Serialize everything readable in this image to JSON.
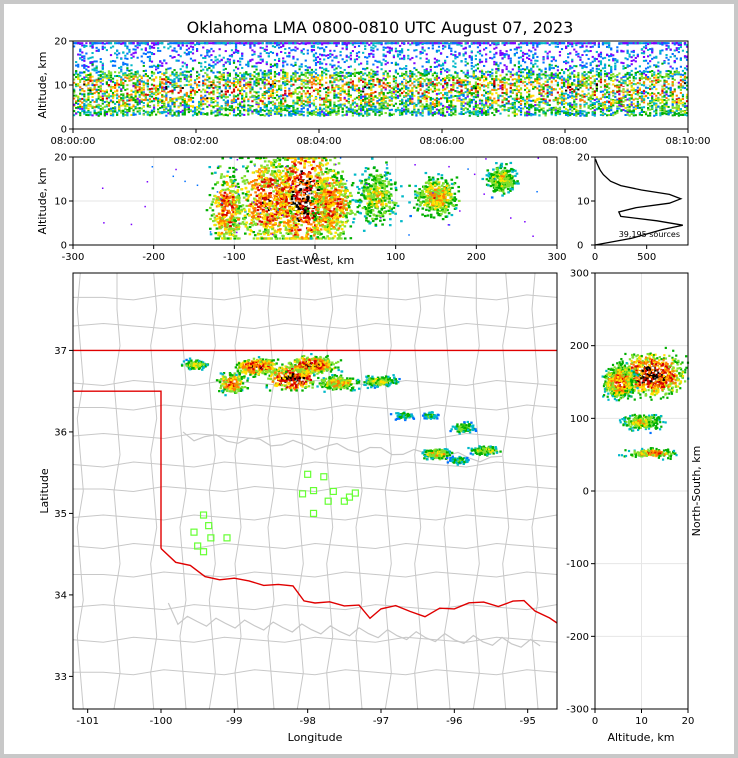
{
  "title": "Oklahoma LMA 0800-0810 UTC August 07, 2023",
  "colors": {
    "state_border": "#e00000",
    "county": "#c8c8c8",
    "station": "#66ff33",
    "frame": "#000000"
  },
  "chart_data": [
    {
      "type": "heatmap",
      "panel": "altitude-time",
      "xlim": [
        "08:00:00",
        "08:10:00"
      ],
      "ylim": [
        0,
        20
      ],
      "xticks": [
        "08:00:00",
        "08:02:00",
        "08:04:00",
        "08:06:00",
        "08:08:00",
        "08:10:00"
      ],
      "yticks": [
        0,
        10,
        20
      ],
      "ylabel": "Altitude, km"
    },
    {
      "type": "heatmap",
      "panel": "east-west-altitude",
      "xlim": [
        -300,
        300
      ],
      "ylim": [
        0,
        20
      ],
      "xticks": [
        -300,
        -200,
        -100,
        0,
        100,
        200,
        300
      ],
      "yticks": [
        0,
        10,
        20
      ],
      "xlabel": "East-West, km",
      "ylabel": "Altitude, km",
      "clusters": [
        {
          "x": -110,
          "y": 8,
          "w": 20,
          "h": 8,
          "intensity": 0.8
        },
        {
          "x": -60,
          "y": 10,
          "w": 35,
          "h": 10,
          "intensity": 0.85
        },
        {
          "x": -15,
          "y": 11,
          "w": 35,
          "h": 11,
          "intensity": 1.0
        },
        {
          "x": 20,
          "y": 9,
          "w": 25,
          "h": 8,
          "intensity": 0.8
        },
        {
          "x": 75,
          "y": 11,
          "w": 25,
          "h": 6,
          "intensity": 0.6
        },
        {
          "x": 150,
          "y": 11,
          "w": 25,
          "h": 4,
          "intensity": 0.7
        },
        {
          "x": 230,
          "y": 15,
          "w": 18,
          "h": 3,
          "intensity": 0.6
        }
      ]
    },
    {
      "type": "line",
      "panel": "altitude-histogram",
      "xlim": [
        0,
        900
      ],
      "ylim": [
        0,
        20
      ],
      "xticks": [
        0,
        500
      ],
      "yticks": [
        0,
        10,
        20
      ],
      "annotation": "39,195 sources",
      "points": [
        [
          0,
          0
        ],
        [
          350,
          1.5
        ],
        [
          500,
          2.5
        ],
        [
          650,
          3.5
        ],
        [
          850,
          4.5
        ],
        [
          600,
          5.5
        ],
        [
          250,
          6.5
        ],
        [
          230,
          7.5
        ],
        [
          400,
          8.5
        ],
        [
          720,
          9.5
        ],
        [
          830,
          10.5
        ],
        [
          720,
          11.5
        ],
        [
          450,
          12.5
        ],
        [
          250,
          13.5
        ],
        [
          150,
          14.5
        ],
        [
          80,
          16
        ],
        [
          50,
          17
        ],
        [
          20,
          18.5
        ],
        [
          5,
          19.5
        ]
      ]
    },
    {
      "type": "scatter",
      "panel": "plan-view-map",
      "xlim": [
        -101.2,
        -94.6
      ],
      "ylim": [
        32.6,
        37.95
      ],
      "xticks": [
        -101,
        -100,
        -99,
        -98,
        -97,
        -96,
        -95
      ],
      "yticks": [
        33,
        34,
        35,
        36,
        37
      ],
      "xlabel": "Longitude",
      "ylabel": "Latitude",
      "stations": [
        [
          -99.42,
          34.98
        ],
        [
          -99.35,
          34.85
        ],
        [
          -99.32,
          34.7
        ],
        [
          -99.55,
          34.77
        ],
        [
          -99.5,
          34.6
        ],
        [
          -99.42,
          34.53
        ],
        [
          -99.1,
          34.7
        ],
        [
          -98.0,
          35.48
        ],
        [
          -97.92,
          35.28
        ],
        [
          -97.78,
          35.45
        ],
        [
          -98.07,
          35.24
        ],
        [
          -97.72,
          35.15
        ],
        [
          -97.65,
          35.27
        ],
        [
          -97.5,
          35.15
        ],
        [
          -97.43,
          35.2
        ],
        [
          -97.35,
          35.25
        ],
        [
          -97.92,
          35.0
        ]
      ],
      "clusters": [
        {
          "lon": -99.55,
          "lat": 36.82,
          "w": 0.15,
          "h": 0.06,
          "intensity": 0.6
        },
        {
          "lon": -99.05,
          "lat": 36.6,
          "w": 0.18,
          "h": 0.12,
          "intensity": 0.8
        },
        {
          "lon": -98.7,
          "lat": 36.8,
          "w": 0.28,
          "h": 0.1,
          "intensity": 0.9
        },
        {
          "lon": -98.22,
          "lat": 36.65,
          "w": 0.3,
          "h": 0.15,
          "intensity": 1.0
        },
        {
          "lon": -97.95,
          "lat": 36.82,
          "w": 0.3,
          "h": 0.1,
          "intensity": 0.9
        },
        {
          "lon": -97.6,
          "lat": 36.6,
          "w": 0.25,
          "h": 0.08,
          "intensity": 0.7
        },
        {
          "lon": -97.05,
          "lat": 36.62,
          "w": 0.22,
          "h": 0.06,
          "intensity": 0.6
        },
        {
          "lon": -96.7,
          "lat": 36.2,
          "w": 0.12,
          "h": 0.04,
          "intensity": 0.4
        },
        {
          "lon": -96.35,
          "lat": 36.2,
          "w": 0.1,
          "h": 0.04,
          "intensity": 0.4
        },
        {
          "lon": -95.9,
          "lat": 36.05,
          "w": 0.15,
          "h": 0.06,
          "intensity": 0.5
        },
        {
          "lon": -96.25,
          "lat": 35.73,
          "w": 0.18,
          "h": 0.06,
          "intensity": 0.7
        },
        {
          "lon": -95.6,
          "lat": 35.77,
          "w": 0.18,
          "h": 0.05,
          "intensity": 0.6
        },
        {
          "lon": -95.95,
          "lat": 35.65,
          "w": 0.14,
          "h": 0.04,
          "intensity": 0.4
        }
      ]
    },
    {
      "type": "heatmap",
      "panel": "altitude-north-south",
      "xlim": [
        0,
        20
      ],
      "ylim": [
        -300,
        300
      ],
      "xticks": [
        0,
        10,
        20
      ],
      "yticks": [
        -300,
        -200,
        -100,
        0,
        100,
        200,
        300
      ],
      "xlabel": "Altitude, km",
      "ylabel": "North-South, km",
      "clusters": [
        {
          "x": 12,
          "y": 160,
          "w": 6,
          "h": 25,
          "intensity": 1.0
        },
        {
          "x": 5,
          "y": 150,
          "w": 3,
          "h": 20,
          "intensity": 0.8
        },
        {
          "x": 10,
          "y": 95,
          "w": 4,
          "h": 10,
          "intensity": 0.6
        },
        {
          "x": 12,
          "y": 52,
          "w": 5,
          "h": 6,
          "intensity": 0.7
        }
      ]
    }
  ]
}
